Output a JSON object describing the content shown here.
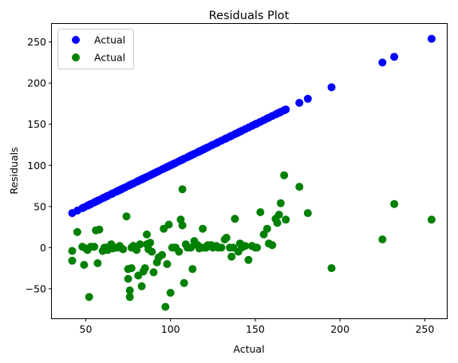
{
  "chart_data": {
    "type": "scatter",
    "title": "Residuals Plot",
    "xlabel": "Actual",
    "ylabel": "Residuals",
    "xlim": [
      30,
      263
    ],
    "ylim": [
      -86,
      272
    ],
    "xticks": [
      50,
      100,
      150,
      200,
      250
    ],
    "yticks": [
      -50,
      0,
      50,
      100,
      150,
      200,
      250
    ],
    "grid": false,
    "legend_position": "top-left",
    "series": [
      {
        "name": "Actual",
        "color": "#0000ff",
        "x": [
          42,
          45,
          48,
          49,
          51,
          52,
          53,
          55,
          56,
          57,
          58,
          60,
          61,
          62,
          63,
          65,
          66,
          68,
          69,
          70,
          71,
          72,
          73,
          75,
          76,
          77,
          78,
          80,
          81,
          82,
          83,
          84,
          85,
          86,
          88,
          89,
          90,
          91,
          92,
          93,
          95,
          96,
          97,
          98,
          99,
          100,
          101,
          102,
          103,
          105,
          106,
          107,
          108,
          110,
          111,
          112,
          113,
          114,
          116,
          117,
          118,
          119,
          120,
          121,
          122,
          124,
          125,
          127,
          128,
          130,
          132,
          133,
          135,
          136,
          138,
          139,
          140,
          141,
          142,
          144,
          146,
          148,
          150,
          151,
          153,
          155,
          157,
          158,
          160,
          162,
          163,
          164,
          165,
          167,
          168,
          176,
          181,
          195,
          225,
          232,
          254
        ],
        "y": [
          42,
          45,
          48,
          49,
          51,
          52,
          53,
          55,
          56,
          57,
          58,
          60,
          61,
          62,
          63,
          65,
          66,
          68,
          69,
          70,
          71,
          72,
          73,
          75,
          76,
          77,
          78,
          80,
          81,
          82,
          83,
          84,
          85,
          86,
          88,
          89,
          90,
          91,
          92,
          93,
          95,
          96,
          97,
          98,
          99,
          100,
          101,
          102,
          103,
          105,
          106,
          107,
          108,
          110,
          111,
          112,
          113,
          114,
          116,
          117,
          118,
          119,
          120,
          121,
          122,
          124,
          125,
          127,
          128,
          130,
          132,
          133,
          135,
          136,
          138,
          139,
          140,
          141,
          142,
          144,
          146,
          148,
          150,
          151,
          153,
          155,
          157,
          158,
          160,
          162,
          163,
          164,
          165,
          167,
          168,
          176,
          181,
          195,
          225,
          232,
          254
        ]
      },
      {
        "name": "Actual",
        "color": "#008000",
        "x": [
          42,
          42,
          45,
          48,
          49,
          50,
          51,
          52,
          53,
          55,
          56,
          57,
          58,
          60,
          61,
          62,
          63,
          65,
          66,
          68,
          69,
          70,
          72,
          74,
          75,
          75,
          76,
          76,
          77,
          77,
          78,
          80,
          81,
          82,
          83,
          84,
          85,
          86,
          86,
          87,
          88,
          89,
          90,
          92,
          93,
          95,
          96,
          97,
          98,
          99,
          100,
          101,
          102,
          103,
          105,
          106,
          107,
          107,
          108,
          109,
          110,
          112,
          113,
          114,
          116,
          117,
          118,
          119,
          120,
          121,
          122,
          124,
          125,
          127,
          128,
          130,
          132,
          133,
          135,
          136,
          137,
          138,
          140,
          141,
          142,
          144,
          146,
          148,
          150,
          151,
          153,
          155,
          157,
          158,
          160,
          162,
          163,
          164,
          165,
          167,
          168,
          176,
          181,
          195,
          225,
          232,
          254
        ],
        "y": [
          -4,
          -16,
          19,
          1,
          -21,
          -1,
          -3,
          -60,
          1,
          1,
          21,
          -19,
          22,
          -4,
          0,
          0,
          -3,
          4,
          -1,
          0,
          0,
          2,
          -2,
          38,
          -26,
          -38,
          -52,
          -60,
          -25,
          0,
          2,
          -3,
          -34,
          4,
          -47,
          -29,
          -25,
          4,
          16,
          -2,
          6,
          -5,
          -30,
          -18,
          -12,
          -9,
          23,
          -72,
          -20,
          28,
          -55,
          0,
          0,
          0,
          -5,
          34,
          27,
          71,
          -43,
          4,
          0,
          0,
          -26,
          8,
          3,
          -1,
          0,
          23,
          0,
          0,
          3,
          3,
          0,
          2,
          0,
          0,
          10,
          12,
          0,
          -11,
          0,
          35,
          -5,
          5,
          0,
          2,
          -15,
          2,
          0,
          0,
          43,
          16,
          23,
          5,
          3,
          35,
          30,
          40,
          54,
          88,
          34,
          74,
          42,
          -25,
          10,
          53,
          34
        ]
      }
    ]
  }
}
